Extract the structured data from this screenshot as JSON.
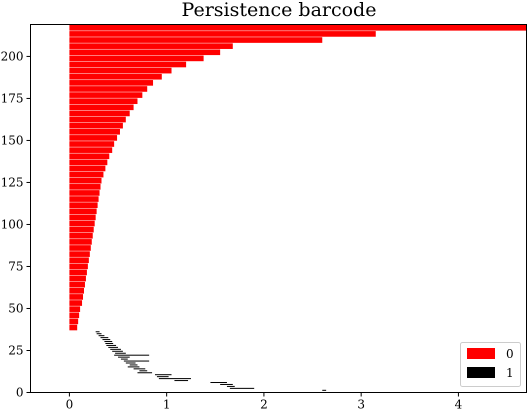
{
  "chart_data": {
    "type": "bar",
    "orientation": "horizontal",
    "title": "Persistence barcode",
    "xlabel": "",
    "ylabel": "",
    "xlim": [
      -0.4,
      4.7
    ],
    "ylim": [
      0,
      219
    ],
    "xticks": [
      0,
      1,
      2,
      3,
      4
    ],
    "yticks": [
      0,
      25,
      50,
      75,
      100,
      125,
      150,
      175,
      200
    ],
    "grid": false,
    "legend": {
      "position": "lower-right",
      "entries": [
        "0",
        "1"
      ]
    },
    "series": [
      {
        "name": "0",
        "color": "#ff0000",
        "values_note": "bars of dimension 0; each bar spans [birth, death], index is y",
        "bars": [
          {
            "birth": 0,
            "death": 0.08
          },
          {
            "birth": 0,
            "death": 0.09
          },
          {
            "birth": 0,
            "death": 0.1
          },
          {
            "birth": 0,
            "death": 0.11
          },
          {
            "birth": 0,
            "death": 0.13
          },
          {
            "birth": 0,
            "death": 0.14
          },
          {
            "birth": 0,
            "death": 0.15
          },
          {
            "birth": 0,
            "death": 0.16
          },
          {
            "birth": 0,
            "death": 0.17
          },
          {
            "birth": 0,
            "death": 0.18
          },
          {
            "birth": 0,
            "death": 0.19
          },
          {
            "birth": 0,
            "death": 0.2
          },
          {
            "birth": 0,
            "death": 0.21
          },
          {
            "birth": 0,
            "death": 0.22
          },
          {
            "birth": 0,
            "death": 0.23
          },
          {
            "birth": 0,
            "death": 0.24
          },
          {
            "birth": 0,
            "death": 0.25
          },
          {
            "birth": 0,
            "death": 0.26
          },
          {
            "birth": 0,
            "death": 0.27
          },
          {
            "birth": 0,
            "death": 0.28
          },
          {
            "birth": 0,
            "death": 0.29
          },
          {
            "birth": 0,
            "death": 0.3
          },
          {
            "birth": 0,
            "death": 0.31
          },
          {
            "birth": 0,
            "death": 0.32
          },
          {
            "birth": 0,
            "death": 0.33
          },
          {
            "birth": 0,
            "death": 0.35
          },
          {
            "birth": 0,
            "death": 0.37
          },
          {
            "birth": 0,
            "death": 0.39
          },
          {
            "birth": 0,
            "death": 0.41
          },
          {
            "birth": 0,
            "death": 0.44
          },
          {
            "birth": 0,
            "death": 0.46
          },
          {
            "birth": 0,
            "death": 0.49
          },
          {
            "birth": 0,
            "death": 0.52
          },
          {
            "birth": 0,
            "death": 0.55
          },
          {
            "birth": 0,
            "death": 0.58
          },
          {
            "birth": 0,
            "death": 0.62
          },
          {
            "birth": 0,
            "death": 0.66
          },
          {
            "birth": 0,
            "death": 0.7
          },
          {
            "birth": 0,
            "death": 0.75
          },
          {
            "birth": 0,
            "death": 0.8
          },
          {
            "birth": 0,
            "death": 0.86
          },
          {
            "birth": 0,
            "death": 0.95
          },
          {
            "birth": 0,
            "death": 1.05
          },
          {
            "birth": 0,
            "death": 1.2
          },
          {
            "birth": 0,
            "death": 1.38
          },
          {
            "birth": 0,
            "death": 1.55
          },
          {
            "birth": 0,
            "death": 1.68
          },
          {
            "birth": 0,
            "death": 2.6
          },
          {
            "birth": 0,
            "death": 3.15
          },
          {
            "birth": 0,
            "death": 4.7
          }
        ]
      },
      {
        "name": "1",
        "color": "#000000",
        "bars": [
          {
            "birth": 2.6,
            "death": 2.64
          },
          {
            "birth": 1.65,
            "death": 1.9
          },
          {
            "birth": 1.62,
            "death": 1.7
          },
          {
            "birth": 1.55,
            "death": 1.68
          },
          {
            "birth": 1.45,
            "death": 1.62
          },
          {
            "birth": 1.08,
            "death": 1.22
          },
          {
            "birth": 0.92,
            "death": 1.25
          },
          {
            "birth": 0.9,
            "death": 1.02
          },
          {
            "birth": 0.88,
            "death": 1.05
          },
          {
            "birth": 0.7,
            "death": 0.85
          },
          {
            "birth": 0.72,
            "death": 0.8
          },
          {
            "birth": 0.66,
            "death": 0.78
          },
          {
            "birth": 0.6,
            "death": 0.72
          },
          {
            "birth": 0.62,
            "death": 0.7
          },
          {
            "birth": 0.58,
            "death": 0.68
          },
          {
            "birth": 0.56,
            "death": 0.82
          },
          {
            "birth": 0.53,
            "death": 0.6
          },
          {
            "birth": 0.5,
            "death": 0.62
          },
          {
            "birth": 0.46,
            "death": 0.82
          },
          {
            "birth": 0.47,
            "death": 0.58
          },
          {
            "birth": 0.44,
            "death": 0.55
          },
          {
            "birth": 0.42,
            "death": 0.53
          },
          {
            "birth": 0.4,
            "death": 0.5
          },
          {
            "birth": 0.38,
            "death": 0.48
          },
          {
            "birth": 0.37,
            "death": 0.45
          },
          {
            "birth": 0.36,
            "death": 0.44
          },
          {
            "birth": 0.34,
            "death": 0.42
          },
          {
            "birth": 0.32,
            "death": 0.4
          },
          {
            "birth": 0.3,
            "death": 0.36
          },
          {
            "birth": 0.28,
            "death": 0.33
          },
          {
            "birth": 0.27,
            "death": 0.31
          }
        ]
      }
    ]
  }
}
